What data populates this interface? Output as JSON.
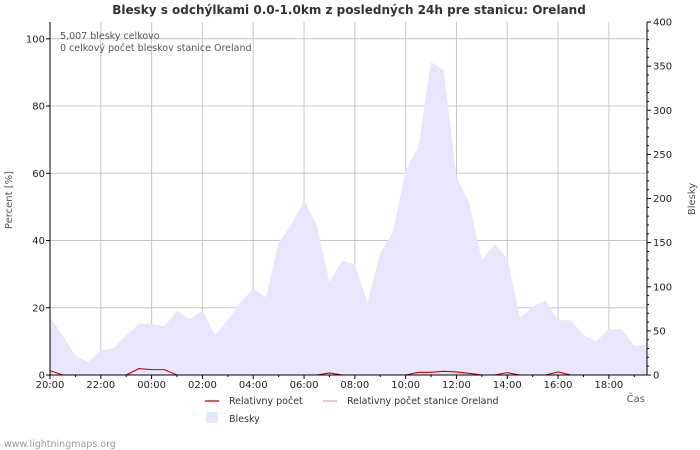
{
  "chart_data": {
    "type": "area",
    "title": "Blesky s odchýlkami 0.0-1.0km z posledných 24h pre stanicu: Oreland",
    "annotations": [
      "5,007 blesky celkovo",
      "0 celkový počet bleskov stanice Oreland"
    ],
    "ylabel_left": "Percent   [%]",
    "ylabel_right": "Blesky",
    "xlabel": "Čas",
    "ylim_left": [
      0,
      105
    ],
    "ylim_right": [
      0,
      400
    ],
    "yticks_left": [
      0,
      20,
      40,
      60,
      80,
      100
    ],
    "yticks_right": [
      0,
      50,
      100,
      150,
      200,
      250,
      300,
      350,
      400
    ],
    "x_range": [
      0,
      23.5
    ],
    "xticks": [
      {
        "x": 0,
        "label": "20:00"
      },
      {
        "x": 2,
        "label": "22:00"
      },
      {
        "x": 4,
        "label": "00:00"
      },
      {
        "x": 6,
        "label": "02:00"
      },
      {
        "x": 8,
        "label": "04:00"
      },
      {
        "x": 10,
        "label": "06:00"
      },
      {
        "x": 12,
        "label": "08:00"
      },
      {
        "x": 14,
        "label": "10:00"
      },
      {
        "x": 16,
        "label": "12:00"
      },
      {
        "x": 18,
        "label": "14:00"
      },
      {
        "x": 20,
        "label": "16:00"
      },
      {
        "x": 22,
        "label": "18:00"
      }
    ],
    "series": [
      {
        "name": "Blesky",
        "axis": "right",
        "style": "area",
        "color": "#e6e6fc",
        "x": [
          0,
          0.5,
          1,
          1.5,
          2,
          2.5,
          3,
          3.5,
          4,
          4.5,
          5,
          5.5,
          6,
          6.5,
          7,
          7.5,
          8,
          8.5,
          9,
          9.5,
          10,
          10.5,
          11,
          11.5,
          12,
          12.5,
          13,
          13.5,
          14,
          14.5,
          15,
          15.5,
          16,
          16.5,
          17,
          17.5,
          18,
          18.5,
          19,
          19.5,
          20,
          20.5,
          21,
          21.5,
          22,
          22.5,
          23,
          23.5
        ],
        "values": [
          65,
          45,
          22,
          15,
          28,
          30,
          45,
          58,
          58,
          55,
          73,
          63,
          73,
          45,
          62,
          82,
          98,
          88,
          150,
          170,
          198,
          170,
          105,
          130,
          125,
          82,
          138,
          162,
          232,
          258,
          355,
          345,
          225,
          195,
          130,
          148,
          132,
          65,
          77,
          85,
          62,
          62,
          45,
          38,
          52,
          52,
          33,
          35
        ]
      },
      {
        "name": "Relativny počet",
        "axis": "left",
        "style": "line",
        "color": "#cc0000",
        "x": [
          0,
          0.5,
          1,
          1.5,
          2,
          2.5,
          3,
          3.5,
          4,
          4.5,
          5,
          5.5,
          6,
          6.5,
          7,
          7.5,
          8,
          8.5,
          9,
          9.5,
          10,
          10.5,
          11,
          11.5,
          12,
          12.5,
          13,
          13.5,
          14,
          14.5,
          15,
          15.5,
          16,
          16.5,
          17,
          17.5,
          18,
          18.5,
          19,
          19.5,
          20,
          20.5,
          21,
          21.5,
          22,
          22.5,
          23,
          23.5
        ],
        "values": [
          1.3,
          0,
          0,
          0,
          0,
          0,
          0,
          1.9,
          1.6,
          1.6,
          0,
          0,
          0,
          0,
          0,
          0,
          0,
          0,
          0,
          0,
          0,
          0,
          0.6,
          0,
          0,
          0,
          0,
          0,
          0,
          0.8,
          0.8,
          1.1,
          0.9,
          0.5,
          0,
          0,
          0.7,
          0,
          0,
          0,
          0.9,
          0,
          0,
          0,
          0,
          0,
          0,
          0
        ]
      },
      {
        "name": "Relativny počet stanice Oreland",
        "axis": "left",
        "style": "line",
        "color": "#f4a6a6",
        "x": [
          0,
          23.5
        ],
        "values": [
          0,
          0
        ]
      }
    ],
    "legend": [
      "Relativny počet",
      "Relativny počet stanice Oreland",
      "Blesky"
    ],
    "grid": true
  },
  "footer": "www.lightningmaps.org",
  "colors": {
    "blesky_fill": "#e6e6fc",
    "relative_line": "#cc0000",
    "station_line": "#f4a6a6",
    "grid": "#c8c8c8",
    "axis": "#000000"
  }
}
